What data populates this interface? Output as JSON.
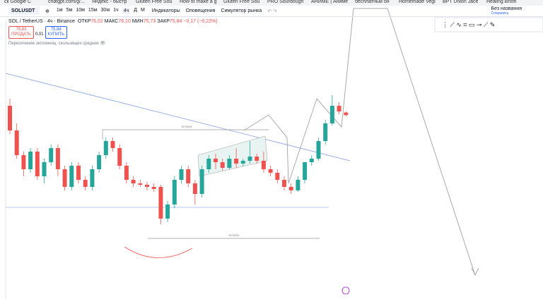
{
  "bookmarks": [
    "ск Google C",
    "chatgpt.com/g/...",
    "Яндекс - быстр",
    "Gluten Free Sou",
    "How to make a g",
    "Gluten Free Sou",
    "PRO Sourdough",
    "АНИМЕ | Аниме",
    "бесплатный он",
    "Homemade Vegi",
    "BPT Union Jace",
    "Healing Broth"
  ],
  "toolbar": {
    "symbol": "SOLUSDT",
    "intervals": [
      "1м",
      "5м",
      "10м",
      "15м",
      "30м",
      "1ч",
      "4ч",
      "Д",
      "М"
    ],
    "indicators": "Индикаторы",
    "alerts": "Оповещения",
    "replay": "Симулятор рынка",
    "layout_name": "Без названия",
    "layout_status": "Сохранить"
  },
  "legend": {
    "symbol": "SOL / TetherUS · 4ч · Binance",
    "open_label": "ОТКР",
    "open": "76,02",
    "high_label": "МАКС",
    "high": "76,10",
    "low_label": "МИН",
    "low": "75,73",
    "close_label": "ЗАКР",
    "close": "75,84",
    "change": "−0,17 (−0,22%)",
    "sell_price": "75,83",
    "sell": "ПРОДАТЬ",
    "spread": "0,01",
    "buy_price": "75,84",
    "buy": "КУПИТЬ",
    "indicator": "Пересечение экспоненц. скользящих средних"
  },
  "annotations": [
    "SH BOS",
    "SH BOS"
  ],
  "chart": {
    "type": "candlestick",
    "up_color": "#26a69a",
    "down_color": "#ef5350",
    "candles": [
      [
        76.5,
        77,
        74.5,
        74.75
      ],
      [
        74.75,
        75.25,
        72.75,
        73
      ],
      [
        73,
        73.25,
        71.5,
        72
      ],
      [
        72,
        73.5,
        71.75,
        73.25
      ],
      [
        73.25,
        73.5,
        71.25,
        71.5
      ],
      [
        71.5,
        72.75,
        71,
        72.5
      ],
      [
        72.5,
        73.75,
        72.25,
        73.5
      ],
      [
        73.5,
        73.75,
        71.5,
        72
      ],
      [
        72,
        72.25,
        70.5,
        70.75
      ],
      [
        70.75,
        72.5,
        70.5,
        72.25
      ],
      [
        72.25,
        72.5,
        71,
        71.25
      ],
      [
        71.25,
        71.5,
        70.5,
        70.75
      ],
      [
        70.75,
        72.25,
        70.5,
        72
      ],
      [
        72,
        73.25,
        71.75,
        73
      ],
      [
        73,
        74.25,
        72.75,
        74
      ],
      [
        74,
        74.25,
        73.25,
        73.5
      ],
      [
        73.5,
        73.75,
        72,
        72.25
      ],
      [
        72.25,
        72.5,
        71,
        71.25
      ],
      [
        71.25,
        71.5,
        70.75,
        71
      ],
      [
        71,
        71.25,
        70.75,
        70.9
      ],
      [
        70.9,
        71.1,
        70.5,
        70.75
      ],
      [
        70.75,
        71,
        70.4,
        70.6
      ],
      [
        70.75,
        70.9,
        68.1,
        68.5
      ],
      [
        68.5,
        69.75,
        68.25,
        69.5
      ],
      [
        69.5,
        71.5,
        69.25,
        71.25
      ],
      [
        71.25,
        72.25,
        71,
        72
      ],
      [
        72,
        72.25,
        70.75,
        71
      ],
      [
        71,
        71.25,
        69.5,
        70.25
      ],
      [
        70.25,
        72.25,
        70,
        72
      ],
      [
        72,
        73,
        71.75,
        72.75
      ],
      [
        72.75,
        73.1,
        72,
        72.5
      ],
      [
        72.5,
        72.75,
        71.9,
        72.1
      ],
      [
        72.1,
        73,
        72,
        72.75
      ],
      [
        72.75,
        73.5,
        72.1,
        72.4
      ],
      [
        72.4,
        72.75,
        72.2,
        72.6
      ],
      [
        72.6,
        74,
        72.4,
        72.9
      ],
      [
        72.9,
        73.1,
        72.4,
        72.6
      ],
      [
        72.6,
        73.25,
        71.75,
        72
      ],
      [
        72,
        72.25,
        71.5,
        71.75
      ],
      [
        71.75,
        72,
        71,
        71.25
      ],
      [
        71.25,
        71.5,
        70.5,
        70.75
      ],
      [
        70.75,
        71,
        70.25,
        70.5
      ],
      [
        70.5,
        71.5,
        70.4,
        71.25
      ],
      [
        71.25,
        72.5,
        71,
        72.5
      ],
      [
        72.5,
        73,
        72.25,
        72.75
      ],
      [
        72.75,
        74.25,
        72.6,
        74
      ],
      [
        74,
        75.5,
        73.75,
        75.25
      ],
      [
        75.25,
        77.25,
        75.1,
        76.5
      ],
      [
        76.5,
        76.75,
        75.9,
        76.1
      ],
      [
        76.02,
        76.1,
        75.73,
        75.84
      ]
    ]
  }
}
